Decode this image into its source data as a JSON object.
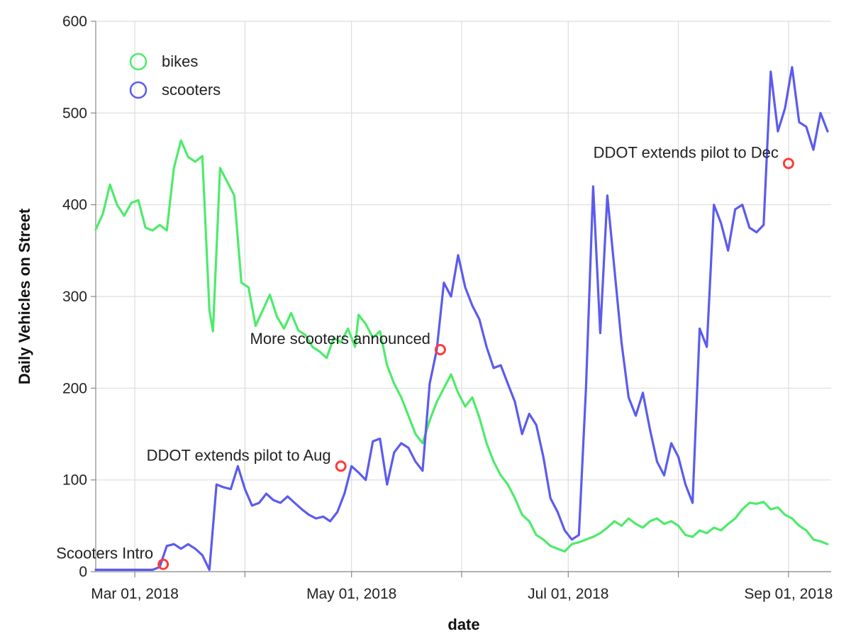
{
  "chart_data": {
    "type": "line",
    "xlabel": "date",
    "ylabel": "Daily Vehicles on Street",
    "ylim": [
      0,
      600
    ],
    "yticks": [
      0,
      100,
      200,
      300,
      400,
      500,
      600
    ],
    "xlim": [
      "2018-02-18",
      "2018-09-13"
    ],
    "xticks": [
      {
        "date": "2018-03-01",
        "label": "Mar 01, 2018"
      },
      {
        "date": "2018-04-01",
        "label": ""
      },
      {
        "date": "2018-05-01",
        "label": "May 01, 2018"
      },
      {
        "date": "2018-06-01",
        "label": ""
      },
      {
        "date": "2018-07-01",
        "label": "Jul 01, 2018"
      },
      {
        "date": "2018-08-01",
        "label": ""
      },
      {
        "date": "2018-09-01",
        "label": "Sep 01, 2018"
      }
    ],
    "grid": true,
    "legend_position": "top-left",
    "series": [
      {
        "name": "bikes",
        "color": "#4deb6b",
        "points": [
          [
            "2018-02-18",
            373
          ],
          [
            "2018-02-20",
            390
          ],
          [
            "2018-02-22",
            422
          ],
          [
            "2018-02-24",
            400
          ],
          [
            "2018-02-26",
            388
          ],
          [
            "2018-02-28",
            402
          ],
          [
            "2018-03-02",
            405
          ],
          [
            "2018-03-04",
            375
          ],
          [
            "2018-03-06",
            372
          ],
          [
            "2018-03-08",
            378
          ],
          [
            "2018-03-10",
            372
          ],
          [
            "2018-03-12",
            440
          ],
          [
            "2018-03-14",
            470
          ],
          [
            "2018-03-16",
            452
          ],
          [
            "2018-03-18",
            447
          ],
          [
            "2018-03-20",
            453
          ],
          [
            "2018-03-22",
            285
          ],
          [
            "2018-03-23",
            262
          ],
          [
            "2018-03-25",
            440
          ],
          [
            "2018-03-27",
            425
          ],
          [
            "2018-03-29",
            410
          ],
          [
            "2018-03-31",
            315
          ],
          [
            "2018-04-02",
            310
          ],
          [
            "2018-04-04",
            268
          ],
          [
            "2018-04-06",
            285
          ],
          [
            "2018-04-08",
            302
          ],
          [
            "2018-04-10",
            278
          ],
          [
            "2018-04-12",
            265
          ],
          [
            "2018-04-14",
            282
          ],
          [
            "2018-04-16",
            263
          ],
          [
            "2018-04-18",
            258
          ],
          [
            "2018-04-20",
            245
          ],
          [
            "2018-04-22",
            240
          ],
          [
            "2018-04-24",
            233
          ],
          [
            "2018-04-26",
            255
          ],
          [
            "2018-04-28",
            250
          ],
          [
            "2018-04-30",
            265
          ],
          [
            "2018-05-02",
            245
          ],
          [
            "2018-05-03",
            280
          ],
          [
            "2018-05-05",
            270
          ],
          [
            "2018-05-07",
            255
          ],
          [
            "2018-05-09",
            262
          ],
          [
            "2018-05-11",
            225
          ],
          [
            "2018-05-13",
            205
          ],
          [
            "2018-05-15",
            190
          ],
          [
            "2018-05-17",
            170
          ],
          [
            "2018-05-19",
            150
          ],
          [
            "2018-05-21",
            140
          ],
          [
            "2018-05-23",
            165
          ],
          [
            "2018-05-25",
            185
          ],
          [
            "2018-05-27",
            200
          ],
          [
            "2018-05-29",
            215
          ],
          [
            "2018-05-31",
            195
          ],
          [
            "2018-06-02",
            180
          ],
          [
            "2018-06-04",
            190
          ],
          [
            "2018-06-06",
            168
          ],
          [
            "2018-06-08",
            140
          ],
          [
            "2018-06-10",
            120
          ],
          [
            "2018-06-12",
            105
          ],
          [
            "2018-06-14",
            95
          ],
          [
            "2018-06-16",
            80
          ],
          [
            "2018-06-18",
            62
          ],
          [
            "2018-06-20",
            55
          ],
          [
            "2018-06-22",
            40
          ],
          [
            "2018-06-24",
            35
          ],
          [
            "2018-06-26",
            28
          ],
          [
            "2018-06-28",
            25
          ],
          [
            "2018-06-30",
            22
          ],
          [
            "2018-07-02",
            30
          ],
          [
            "2018-07-04",
            32
          ],
          [
            "2018-07-06",
            35
          ],
          [
            "2018-07-08",
            38
          ],
          [
            "2018-07-10",
            42
          ],
          [
            "2018-07-12",
            48
          ],
          [
            "2018-07-14",
            55
          ],
          [
            "2018-07-16",
            50
          ],
          [
            "2018-07-18",
            58
          ],
          [
            "2018-07-20",
            52
          ],
          [
            "2018-07-22",
            48
          ],
          [
            "2018-07-24",
            55
          ],
          [
            "2018-07-26",
            58
          ],
          [
            "2018-07-28",
            52
          ],
          [
            "2018-07-30",
            55
          ],
          [
            "2018-08-01",
            50
          ],
          [
            "2018-08-03",
            40
          ],
          [
            "2018-08-05",
            38
          ],
          [
            "2018-08-07",
            45
          ],
          [
            "2018-08-09",
            42
          ],
          [
            "2018-08-11",
            48
          ],
          [
            "2018-08-13",
            45
          ],
          [
            "2018-08-15",
            52
          ],
          [
            "2018-08-17",
            58
          ],
          [
            "2018-08-19",
            68
          ],
          [
            "2018-08-21",
            75
          ],
          [
            "2018-08-23",
            74
          ],
          [
            "2018-08-25",
            76
          ],
          [
            "2018-08-27",
            68
          ],
          [
            "2018-08-29",
            70
          ],
          [
            "2018-08-31",
            62
          ],
          [
            "2018-09-02",
            58
          ],
          [
            "2018-09-04",
            50
          ],
          [
            "2018-09-06",
            45
          ],
          [
            "2018-09-08",
            35
          ],
          [
            "2018-09-10",
            33
          ],
          [
            "2018-09-12",
            30
          ]
        ]
      },
      {
        "name": "scooters",
        "color": "#5b5bef",
        "points": [
          [
            "2018-02-18",
            2
          ],
          [
            "2018-02-24",
            2
          ],
          [
            "2018-03-01",
            2
          ],
          [
            "2018-03-06",
            2
          ],
          [
            "2018-03-08",
            5
          ],
          [
            "2018-03-10",
            28
          ],
          [
            "2018-03-12",
            30
          ],
          [
            "2018-03-14",
            25
          ],
          [
            "2018-03-16",
            30
          ],
          [
            "2018-03-18",
            25
          ],
          [
            "2018-03-20",
            18
          ],
          [
            "2018-03-22",
            2
          ],
          [
            "2018-03-24",
            95
          ],
          [
            "2018-03-26",
            92
          ],
          [
            "2018-03-28",
            90
          ],
          [
            "2018-03-30",
            115
          ],
          [
            "2018-04-01",
            90
          ],
          [
            "2018-04-03",
            72
          ],
          [
            "2018-04-05",
            75
          ],
          [
            "2018-04-07",
            85
          ],
          [
            "2018-04-09",
            78
          ],
          [
            "2018-04-11",
            75
          ],
          [
            "2018-04-13",
            82
          ],
          [
            "2018-04-15",
            75
          ],
          [
            "2018-04-17",
            68
          ],
          [
            "2018-04-19",
            62
          ],
          [
            "2018-04-21",
            58
          ],
          [
            "2018-04-23",
            60
          ],
          [
            "2018-04-25",
            55
          ],
          [
            "2018-04-27",
            65
          ],
          [
            "2018-04-29",
            85
          ],
          [
            "2018-05-01",
            115
          ],
          [
            "2018-05-03",
            108
          ],
          [
            "2018-05-05",
            100
          ],
          [
            "2018-05-07",
            142
          ],
          [
            "2018-05-09",
            145
          ],
          [
            "2018-05-11",
            95
          ],
          [
            "2018-05-13",
            130
          ],
          [
            "2018-05-15",
            140
          ],
          [
            "2018-05-17",
            135
          ],
          [
            "2018-05-19",
            120
          ],
          [
            "2018-05-21",
            110
          ],
          [
            "2018-05-23",
            205
          ],
          [
            "2018-05-25",
            242
          ],
          [
            "2018-05-27",
            315
          ],
          [
            "2018-05-29",
            300
          ],
          [
            "2018-05-31",
            345
          ],
          [
            "2018-06-02",
            310
          ],
          [
            "2018-06-04",
            290
          ],
          [
            "2018-06-06",
            275
          ],
          [
            "2018-06-08",
            245
          ],
          [
            "2018-06-10",
            222
          ],
          [
            "2018-06-12",
            225
          ],
          [
            "2018-06-14",
            205
          ],
          [
            "2018-06-16",
            185
          ],
          [
            "2018-06-18",
            150
          ],
          [
            "2018-06-20",
            172
          ],
          [
            "2018-06-22",
            160
          ],
          [
            "2018-06-24",
            125
          ],
          [
            "2018-06-26",
            80
          ],
          [
            "2018-06-28",
            65
          ],
          [
            "2018-06-30",
            45
          ],
          [
            "2018-07-02",
            35
          ],
          [
            "2018-07-04",
            40
          ],
          [
            "2018-07-06",
            200
          ],
          [
            "2018-07-08",
            420
          ],
          [
            "2018-07-10",
            260
          ],
          [
            "2018-07-12",
            410
          ],
          [
            "2018-07-14",
            330
          ],
          [
            "2018-07-16",
            250
          ],
          [
            "2018-07-18",
            190
          ],
          [
            "2018-07-20",
            170
          ],
          [
            "2018-07-22",
            195
          ],
          [
            "2018-07-24",
            155
          ],
          [
            "2018-07-26",
            120
          ],
          [
            "2018-07-28",
            105
          ],
          [
            "2018-07-30",
            140
          ],
          [
            "2018-08-01",
            125
          ],
          [
            "2018-08-03",
            95
          ],
          [
            "2018-08-05",
            75
          ],
          [
            "2018-08-07",
            265
          ],
          [
            "2018-08-09",
            245
          ],
          [
            "2018-08-11",
            400
          ],
          [
            "2018-08-13",
            380
          ],
          [
            "2018-08-15",
            350
          ],
          [
            "2018-08-17",
            395
          ],
          [
            "2018-08-19",
            400
          ],
          [
            "2018-08-21",
            375
          ],
          [
            "2018-08-23",
            370
          ],
          [
            "2018-08-25",
            378
          ],
          [
            "2018-08-27",
            545
          ],
          [
            "2018-08-29",
            480
          ],
          [
            "2018-08-31",
            505
          ],
          [
            "2018-09-02",
            550
          ],
          [
            "2018-09-04",
            490
          ],
          [
            "2018-09-06",
            485
          ],
          [
            "2018-09-08",
            460
          ],
          [
            "2018-09-10",
            500
          ],
          [
            "2018-09-12",
            480
          ]
        ]
      }
    ],
    "annotations": [
      {
        "date": "2018-03-09",
        "value": 8,
        "label": "Scooters Intro"
      },
      {
        "date": "2018-04-28",
        "value": 115,
        "label": "DDOT extends pilot to Aug"
      },
      {
        "date": "2018-05-26",
        "value": 242,
        "label": "More scooters announced"
      },
      {
        "date": "2018-09-01",
        "value": 445,
        "label": "DDOT extends pilot to Dec"
      }
    ]
  }
}
